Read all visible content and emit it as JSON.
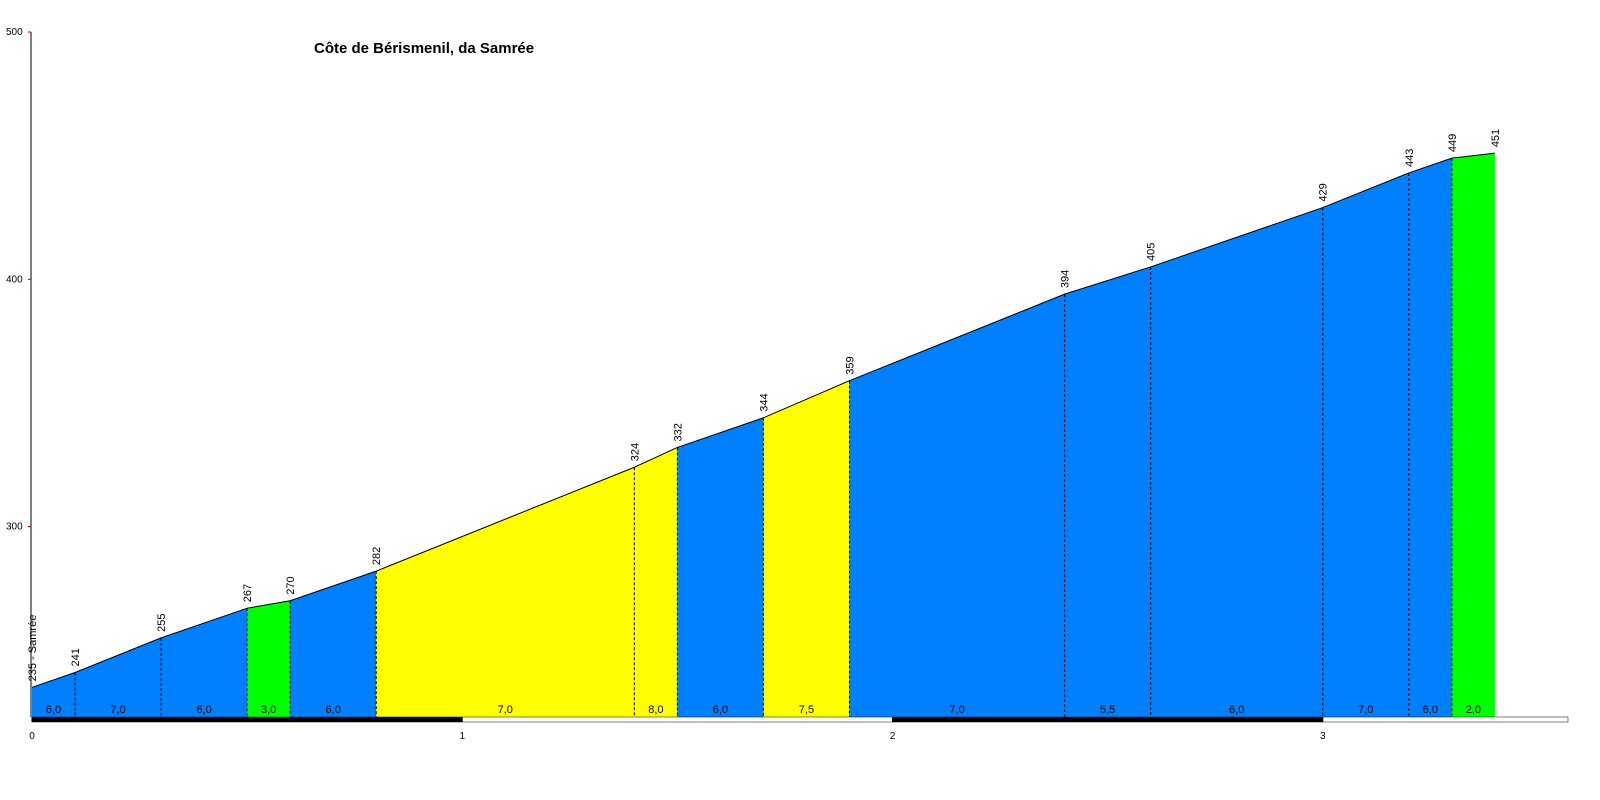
{
  "chart_data": {
    "type": "elevation-profile",
    "title": "Côte de Bérismenil, da Samrée",
    "x": [
      0,
      0.1,
      0.3,
      0.5,
      0.6,
      0.8,
      1.4,
      1.5,
      1.7,
      1.9,
      2.4,
      2.6,
      3.0,
      3.2,
      3.3,
      3.4
    ],
    "values": [
      235,
      241,
      255,
      267,
      270,
      282,
      324,
      332,
      344,
      359,
      394,
      405,
      429,
      443,
      449,
      451
    ],
    "value_labels": [
      "235 - Samrée",
      "241",
      "255",
      "267",
      "270",
      "282",
      "324",
      "332",
      "344",
      "359",
      "394",
      "405",
      "429",
      "443",
      "449",
      "451"
    ],
    "gradients": [
      6,
      7,
      6,
      3,
      6,
      7,
      8,
      6,
      7.5,
      7,
      5.5,
      6,
      7,
      6,
      2
    ],
    "gradient_labels": [
      "6,0",
      "7,0",
      "6,0",
      "3,0",
      "6,0",
      "7,0",
      "8,0",
      "6,0",
      "7,5",
      "7,0",
      "5,5",
      "6,0",
      "7,0",
      "6,0",
      "2,0"
    ],
    "segment_colors": [
      "#0080ff",
      "#0080ff",
      "#0080ff",
      "#00ff00",
      "#0080ff",
      "#ffff00",
      "#ffff00",
      "#0080ff",
      "#ffff00",
      "#0080ff",
      "#0080ff",
      "#0080ff",
      "#0080ff",
      "#0080ff",
      "#00ff00"
    ],
    "xlim": [
      0,
      3.57
    ],
    "xticks": [
      0,
      1,
      2,
      3
    ],
    "ylim": [
      223,
      500
    ],
    "yticks": [
      300,
      400,
      500
    ]
  }
}
